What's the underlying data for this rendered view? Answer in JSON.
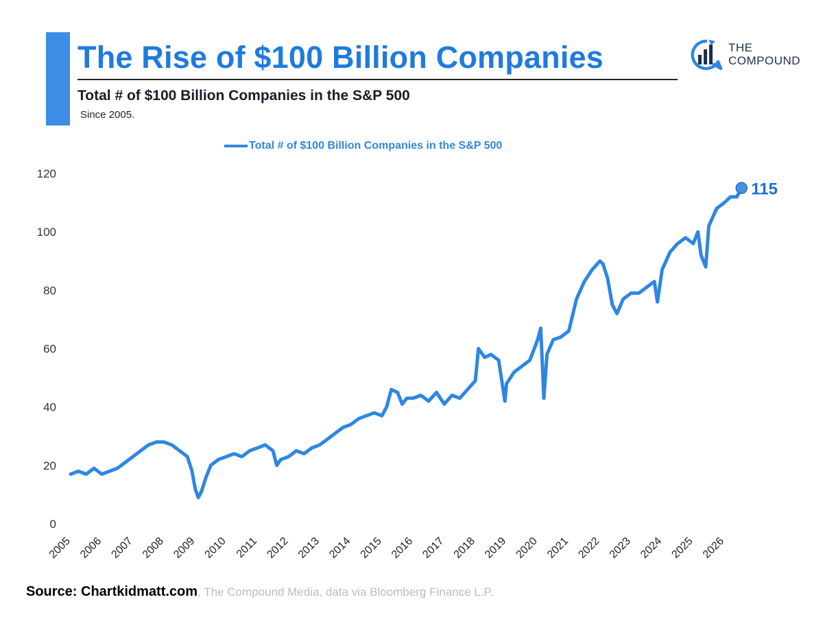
{
  "header": {
    "title": "The Rise of $100 Billion Companies",
    "subtitle": "Total # of $100 Billion Companies in the S&P 500",
    "since": "Since 2005."
  },
  "logo": {
    "line1": "THE",
    "line2": "COMPOUND",
    "icon": "bar-chart-chat-icon"
  },
  "source": {
    "strong": "Source: Chartkidmatt.com",
    "rest": ", The Compound Media, data via Bloomberg Finance L.P."
  },
  "colors": {
    "accent": "#3b8de6",
    "title": "#1f7ae0",
    "series": "#2f86e2",
    "last_label": "#1f6fd1"
  },
  "chart_data": {
    "type": "line",
    "title": "The Rise of $100 Billion Companies",
    "subtitle": "Total # of $100 Billion Companies in the S&P 500",
    "xlabel": "",
    "ylabel": "",
    "xlim": [
      2005,
      2026.7
    ],
    "ylim": [
      0,
      120
    ],
    "yticks": [
      0,
      20,
      40,
      60,
      80,
      100,
      120
    ],
    "xtick_labels": [
      "2005",
      "2006",
      "2007",
      "2008",
      "2009",
      "2010",
      "2011",
      "2012",
      "2013",
      "2014",
      "2015",
      "2016",
      "2017",
      "2018",
      "2019",
      "2020",
      "2021",
      "2022",
      "2023",
      "2024",
      "2025",
      "2026"
    ],
    "grid": false,
    "legend_position": "top-center",
    "last_value_label": "115",
    "series": [
      {
        "name": "Total # of $100 Billion Companies in the S&P 500",
        "x": [
          2005.0,
          2005.25,
          2005.5,
          2005.75,
          2006.0,
          2006.25,
          2006.5,
          2006.75,
          2007.0,
          2007.25,
          2007.5,
          2007.75,
          2008.0,
          2008.25,
          2008.5,
          2008.75,
          2008.9,
          2009.0,
          2009.1,
          2009.2,
          2009.35,
          2009.5,
          2009.75,
          2010.0,
          2010.25,
          2010.5,
          2010.75,
          2011.0,
          2011.25,
          2011.5,
          2011.62,
          2011.75,
          2012.0,
          2012.25,
          2012.5,
          2012.75,
          2013.0,
          2013.25,
          2013.5,
          2013.75,
          2014.0,
          2014.25,
          2014.5,
          2014.75,
          2015.0,
          2015.15,
          2015.3,
          2015.5,
          2015.65,
          2015.8,
          2016.0,
          2016.25,
          2016.5,
          2016.75,
          2017.0,
          2017.25,
          2017.5,
          2017.75,
          2018.0,
          2018.1,
          2018.3,
          2018.5,
          2018.75,
          2018.95,
          2019.0,
          2019.25,
          2019.5,
          2019.75,
          2020.0,
          2020.1,
          2020.2,
          2020.3,
          2020.5,
          2020.75,
          2021.0,
          2021.25,
          2021.5,
          2021.75,
          2022.0,
          2022.1,
          2022.25,
          2022.4,
          2022.55,
          2022.75,
          2023.0,
          2023.25,
          2023.5,
          2023.75,
          2023.85,
          2024.0,
          2024.25,
          2024.5,
          2024.75,
          2025.0,
          2025.15,
          2025.25,
          2025.4,
          2025.5,
          2025.75,
          2026.0,
          2026.2,
          2026.4,
          2026.55
        ],
        "values": [
          17,
          18,
          17,
          19,
          17,
          18,
          19,
          21,
          23,
          25,
          27,
          28,
          28,
          27,
          25,
          23,
          18,
          12,
          9,
          11,
          16,
          20,
          22,
          23,
          24,
          23,
          25,
          26,
          27,
          25,
          20,
          22,
          23,
          25,
          24,
          26,
          27,
          29,
          31,
          33,
          34,
          36,
          37,
          38,
          37,
          40,
          46,
          45,
          41,
          43,
          43,
          44,
          42,
          45,
          41,
          44,
          43,
          46,
          49,
          60,
          57,
          58,
          56,
          42,
          48,
          52,
          54,
          56,
          63,
          67,
          43,
          58,
          63,
          64,
          66,
          77,
          83,
          87,
          90,
          89,
          84,
          75,
          72,
          77,
          79,
          79,
          81,
          83,
          76,
          87,
          93,
          96,
          98,
          96,
          100,
          92,
          88,
          102,
          108,
          110,
          112,
          112,
          115
        ]
      }
    ]
  }
}
